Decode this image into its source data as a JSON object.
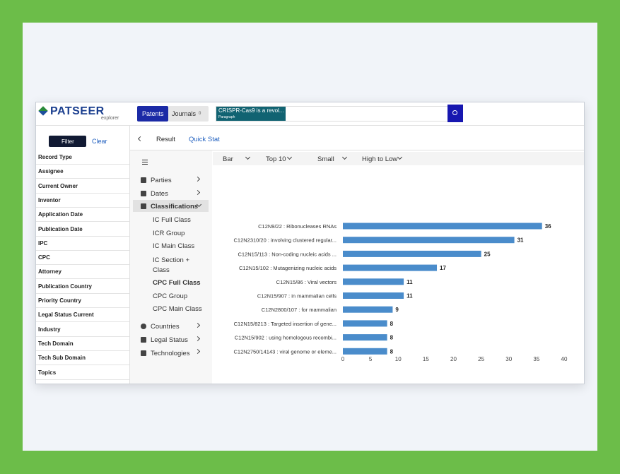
{
  "header": {
    "logo": "PATSEER",
    "logo_sub": "explorer",
    "tabs": [
      "Patents",
      "Journals"
    ],
    "journals_count": "0",
    "search_query": "CRISPR-Cas9 is a revol...",
    "search_field": "Paragraph"
  },
  "sidebar": {
    "filter_button": "Filter",
    "clear": "Clear",
    "fields": [
      "Record Type",
      "Assignee",
      "Current Owner",
      "Inventor",
      "Application Date",
      "Publication Date",
      "IPC",
      "CPC",
      "Attorney",
      "Publication Country",
      "Priority Country",
      "Legal Status Current",
      "Industry",
      "Tech Domain",
      "Tech Sub Domain",
      "Topics"
    ]
  },
  "nav": {
    "result": "Result",
    "quick_stat": "Quick Stat"
  },
  "menu": {
    "parties": "Parties",
    "dates": "Dates",
    "classifications": "Classifications",
    "sub_items": [
      "IC Full Class",
      "ICR Group",
      "IC Main Class",
      "IC Section + Class",
      "CPC Full Class",
      "CPC Group",
      "CPC Main Class"
    ],
    "countries": "Countries",
    "legal_status": "Legal Status",
    "technologies": "Technologies"
  },
  "controls": {
    "chart_type": "Bar",
    "top": "Top 10",
    "size": "Small",
    "order": "High to Low"
  },
  "chart_data": {
    "type": "bar",
    "orientation": "horizontal",
    "color": "#4a8ccb",
    "categories": [
      "C12N9/22 : Ribonucleases RNAs",
      "C12N2310/20 : involving clustered regular...",
      "C12N15/113 : Non-coding nucleic acids ...",
      "C12N15/102 : Mutagenizing nucleic acids",
      "C12N15/86 : Viral vectors",
      "C12N15/907 : in mammalian cells",
      "C12N2800/107 : for mammalian",
      "C12N15/8213 : Targeted insertion of gene...",
      "C12N15/902 : using homologous recombi...",
      "C12N2750/14143 : viral genome or eleme..."
    ],
    "values": [
      36,
      31,
      25,
      17,
      11,
      11,
      9,
      8,
      8,
      8
    ],
    "xlim": [
      0,
      40
    ],
    "xticks": [
      0,
      5,
      10,
      15,
      20,
      25,
      30,
      35,
      40
    ]
  }
}
